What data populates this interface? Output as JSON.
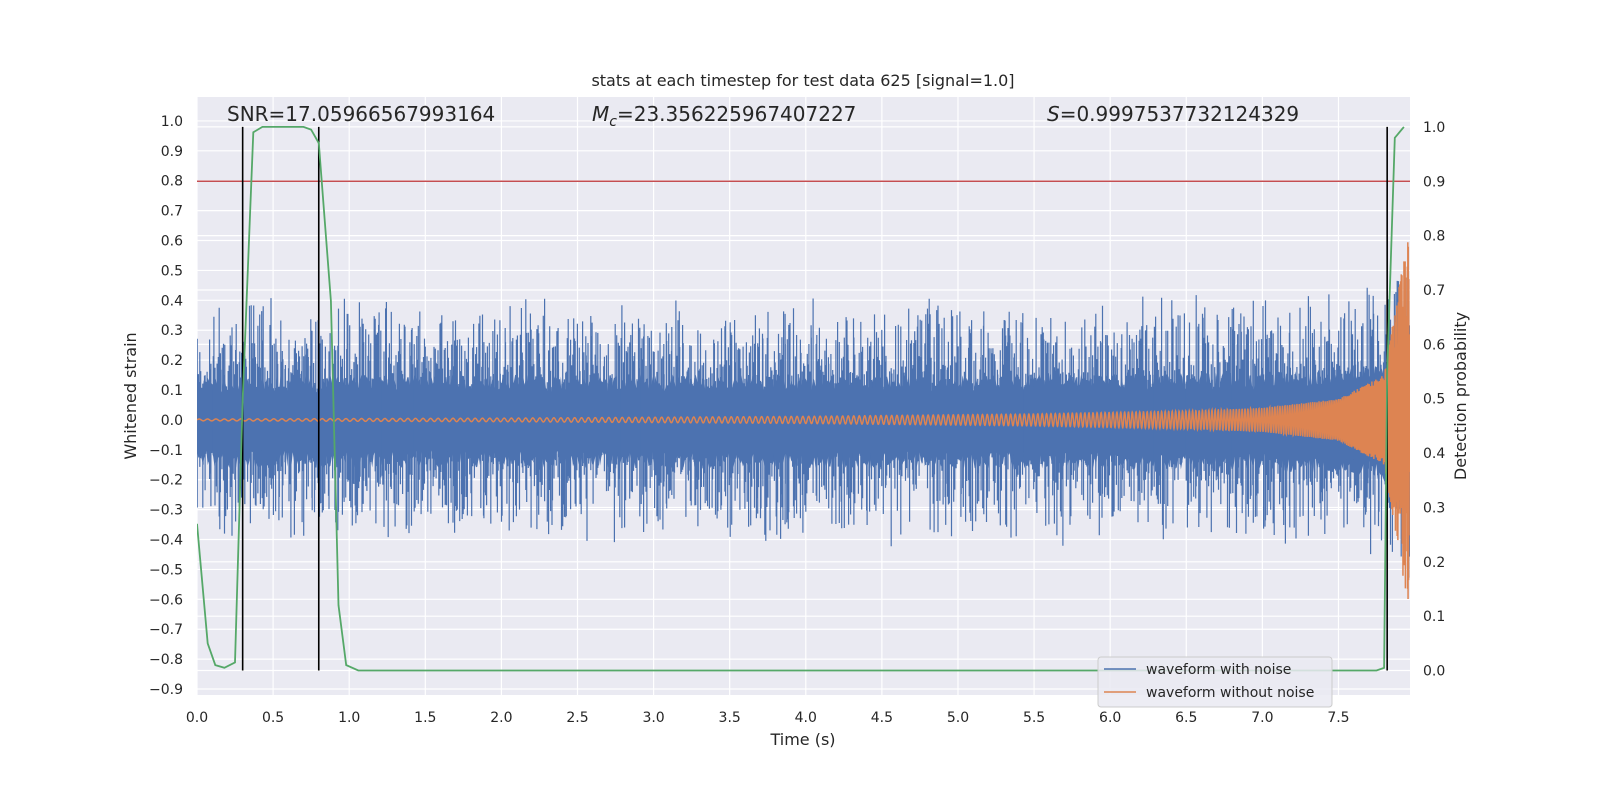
{
  "chart_data": {
    "type": "line",
    "title": "stats at each timestep for test data 625 [signal=1.0]",
    "xlabel": "Time (s)",
    "ylabel_left": "Whitened strain",
    "ylabel_right": "Detection probability",
    "xlim": [
      0.0,
      7.97
    ],
    "ylim_left": [
      -0.92,
      1.08
    ],
    "ylim_right": [
      -0.045,
      1.055
    ],
    "x_ticks": [
      "0.0",
      "0.5",
      "1.0",
      "1.5",
      "2.0",
      "2.5",
      "3.0",
      "3.5",
      "4.0",
      "4.5",
      "5.0",
      "5.5",
      "6.0",
      "6.5",
      "7.0",
      "7.5"
    ],
    "y_left_ticks": [
      "1.0",
      "0.9",
      "0.8",
      "0.7",
      "0.6",
      "0.5",
      "0.4",
      "0.3",
      "0.2",
      "0.1",
      "0.0",
      "−0.1",
      "−0.2",
      "−0.3",
      "−0.4",
      "−0.5",
      "−0.6",
      "−0.7",
      "−0.8",
      "−0.9"
    ],
    "y_right_ticks": [
      "1.0",
      "0.9",
      "0.8",
      "0.7",
      "0.6",
      "0.5",
      "0.4",
      "0.3",
      "0.2",
      "0.1",
      "0.0"
    ],
    "grid": true,
    "legend_position": "lower-right",
    "annotations": {
      "snr": "SNR=17.05966567993164",
      "mc_symbol": "M",
      "mc_sub": "c",
      "mc_value": "=23.356225967407227",
      "s_symbol": "S",
      "s_value": "=0.9997537732124329"
    },
    "series": [
      {
        "name": "waveform with noise",
        "color": "#4c72b0",
        "axis": "left",
        "noise_band_abs": 0.4
      },
      {
        "name": "waveform without noise",
        "color": "#dd8452",
        "axis": "left",
        "chirp_envelope": {
          "x": [
            0.0,
            2.0,
            4.0,
            5.5,
            6.5,
            7.0,
            7.5,
            7.8,
            7.95
          ],
          "amp": [
            0.003,
            0.006,
            0.012,
            0.02,
            0.03,
            0.04,
            0.07,
            0.15,
            0.6
          ]
        }
      },
      {
        "name": "detection probability",
        "color": "#55a868",
        "axis": "right",
        "x": [
          0.0,
          0.07,
          0.12,
          0.18,
          0.25,
          0.3,
          0.37,
          0.43,
          0.5,
          0.6,
          0.7,
          0.75,
          0.8,
          0.88,
          0.93,
          0.98,
          1.06,
          7.75,
          7.8,
          7.82,
          7.87,
          7.93
        ],
        "y": [
          0.27,
          0.05,
          0.01,
          0.005,
          0.015,
          0.5,
          0.99,
          1.0,
          1.0,
          1.0,
          1.0,
          0.995,
          0.97,
          0.68,
          0.12,
          0.01,
          0.0,
          0.0,
          0.005,
          0.55,
          0.98,
          1.0
        ]
      }
    ],
    "threshold_line": {
      "axis": "right",
      "value": 0.9,
      "color": "#c44e52"
    },
    "vertical_lines": [
      0.3,
      0.8,
      7.82
    ],
    "vertical_lines_range_right": [
      0.0,
      1.0
    ]
  }
}
